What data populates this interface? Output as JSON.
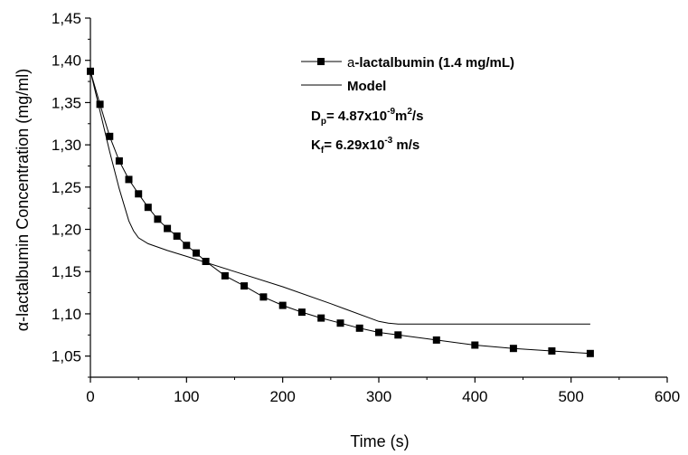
{
  "chart_data": {
    "type": "line",
    "xlabel": "Time (s)",
    "ylabel": "α-lactalbumin Concentration (mg/ml)",
    "xlim": [
      0,
      600
    ],
    "ylim": [
      1.025,
      1.45
    ],
    "x_ticks": [
      0,
      100,
      200,
      300,
      400,
      500,
      600
    ],
    "x_tick_labels": [
      "0",
      "100",
      "200",
      "300",
      "400",
      "500",
      "600"
    ],
    "y_ticks": [
      1.05,
      1.1,
      1.15,
      1.2,
      1.25,
      1.3,
      1.35,
      1.4,
      1.45
    ],
    "y_tick_labels": [
      "1,05",
      "1,10",
      "1,15",
      "1,20",
      "1,25",
      "1,30",
      "1,35",
      "1,40",
      "1,45"
    ],
    "grid": false,
    "legend_position": "top-right",
    "series": [
      {
        "name": "a-lactalbumin (1.4 mg/mL)",
        "name_prefix": "a",
        "name_rest": "-lactalbumin (1.4 mg/mL)",
        "marker": "square",
        "line": true,
        "x": [
          0,
          10,
          20,
          30,
          40,
          50,
          60,
          70,
          80,
          90,
          100,
          110,
          120,
          140,
          160,
          180,
          200,
          220,
          240,
          260,
          280,
          300,
          320,
          360,
          400,
          440,
          480,
          520
        ],
        "y": [
          1.387,
          1.348,
          1.31,
          1.281,
          1.259,
          1.242,
          1.226,
          1.212,
          1.201,
          1.192,
          1.181,
          1.172,
          1.162,
          1.145,
          1.133,
          1.12,
          1.11,
          1.102,
          1.095,
          1.089,
          1.083,
          1.078,
          1.075,
          1.069,
          1.063,
          1.059,
          1.056,
          1.053
        ]
      },
      {
        "name": "Model",
        "marker": "none",
        "line": true,
        "x": [
          0,
          10,
          20,
          30,
          40,
          45,
          50,
          60,
          80,
          100,
          150,
          200,
          250,
          300,
          310,
          320,
          400,
          520
        ],
        "y": [
          1.387,
          1.34,
          1.292,
          1.248,
          1.21,
          1.198,
          1.19,
          1.183,
          1.175,
          1.168,
          1.15,
          1.132,
          1.112,
          1.091,
          1.089,
          1.088,
          1.088,
          1.088
        ]
      }
    ],
    "annotations": [
      {
        "main": "D",
        "sub": "p",
        "mid": "= 4.87x10",
        "sup": "-9",
        "mid2": "m",
        "sup2": "2",
        "tail": "/s"
      },
      {
        "main": "K",
        "sub": "f",
        "mid": "= 6.29x10",
        "sup": "-3",
        "tail": " m/s"
      }
    ]
  }
}
